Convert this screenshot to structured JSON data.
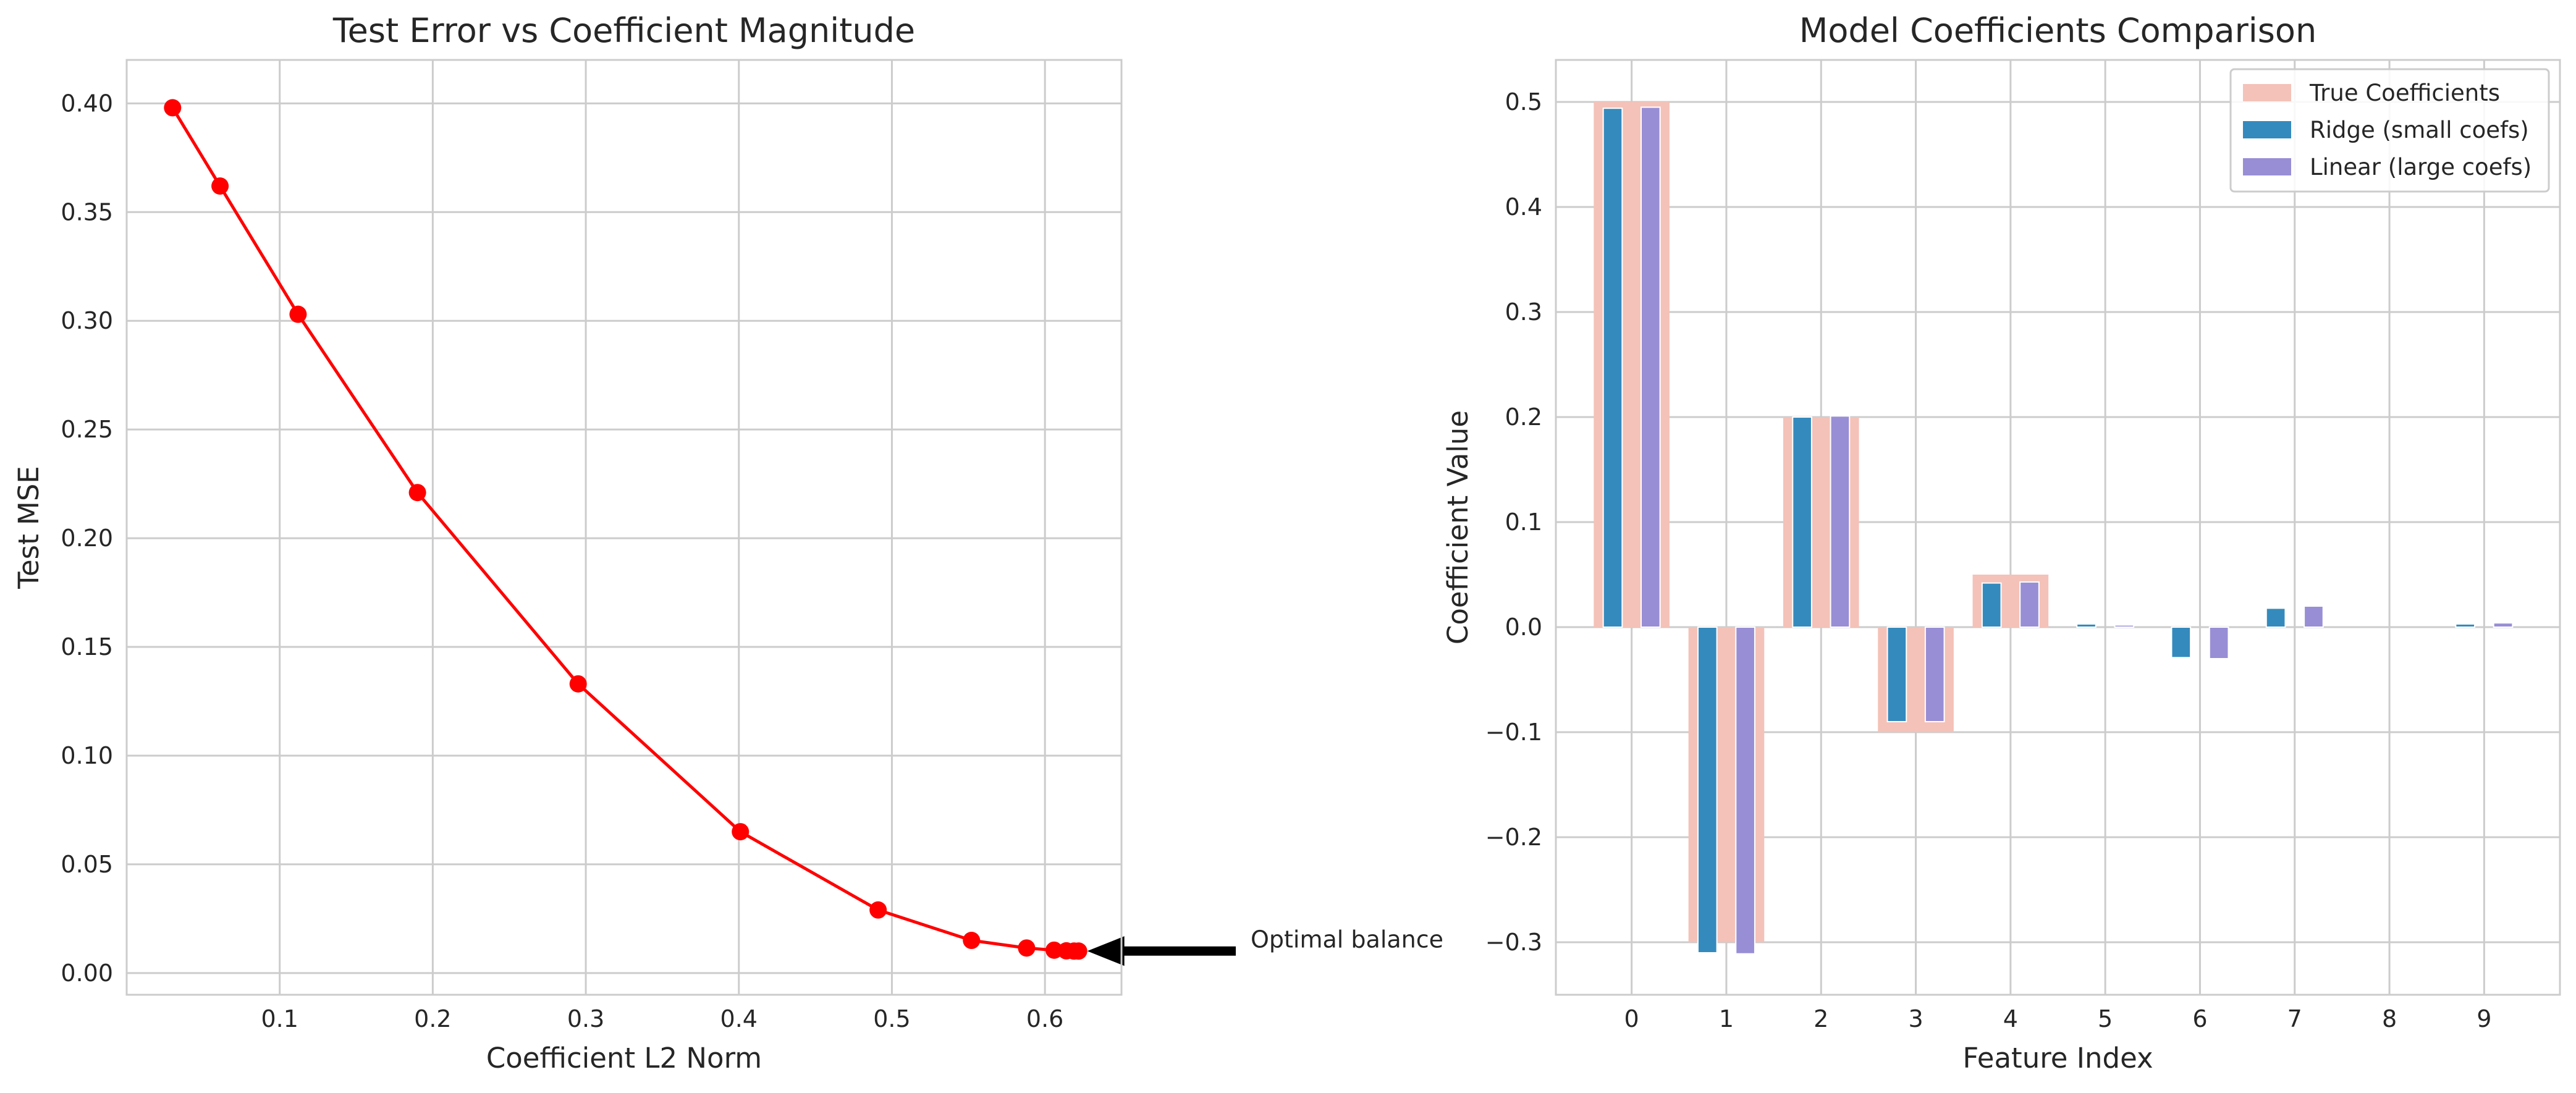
{
  "chart_data": [
    {
      "type": "line",
      "title": "Test Error vs Coefficient Magnitude",
      "xlabel": "Coefficient L2 Norm",
      "ylabel": "Test MSE",
      "xlim": [
        0.0,
        0.65
      ],
      "ylim": [
        -0.01,
        0.42
      ],
      "xticks": [
        0.1,
        0.2,
        0.3,
        0.4,
        0.5,
        0.6
      ],
      "yticks": [
        0.0,
        0.05,
        0.1,
        0.15,
        0.2,
        0.25,
        0.3,
        0.35,
        0.4
      ],
      "grid": true,
      "line_color": "#ff0000",
      "series": [
        {
          "x": [
            0.03,
            0.061,
            0.112,
            0.19,
            0.295,
            0.401,
            0.491,
            0.552,
            0.588,
            0.606,
            0.614,
            0.619,
            0.622
          ],
          "y": [
            0.398,
            0.362,
            0.303,
            0.221,
            0.133,
            0.065,
            0.029,
            0.015,
            0.0115,
            0.0105,
            0.0102,
            0.0101,
            0.0101
          ]
        }
      ],
      "annotation": {
        "text": "Optimal balance",
        "x": 0.622,
        "y": 0.0101,
        "arrow": true
      }
    },
    {
      "type": "bar",
      "title": "Model Coefficients Comparison",
      "xlabel": "Feature Index",
      "ylabel": "Coefficient Value",
      "categories": [
        "0",
        "1",
        "2",
        "3",
        "4",
        "5",
        "6",
        "7",
        "8",
        "9"
      ],
      "ylim": [
        -0.35,
        0.54
      ],
      "yticks": [
        -0.3,
        -0.2,
        -0.1,
        0.0,
        0.1,
        0.2,
        0.3,
        0.4,
        0.5
      ],
      "grid": true,
      "legend_position": "top-right",
      "series": [
        {
          "name": "True Coefficients",
          "color": "#f4c2b8",
          "values": [
            0.5,
            -0.3,
            0.2,
            -0.1,
            0.05,
            0.0,
            0.0,
            0.0,
            0.0,
            0.0
          ]
        },
        {
          "name": "Ridge (small coefs)",
          "color": "#348abd",
          "values": [
            0.494,
            -0.31,
            0.2,
            -0.09,
            0.042,
            0.003,
            -0.029,
            0.018,
            0.0,
            0.003
          ]
        },
        {
          "name": "Linear (large coefs)",
          "color": "#988ed5",
          "values": [
            0.495,
            -0.311,
            0.201,
            -0.09,
            0.043,
            0.002,
            -0.03,
            0.02,
            0.0,
            0.004
          ]
        }
      ]
    }
  ]
}
